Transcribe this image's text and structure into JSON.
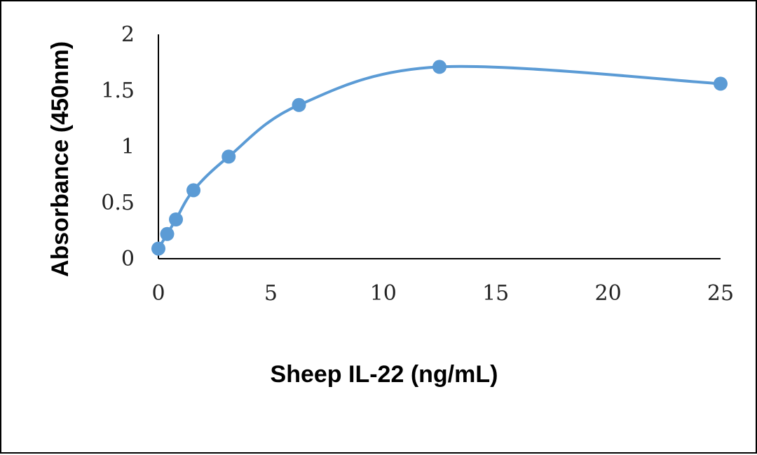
{
  "chart_data": {
    "type": "line",
    "title": "",
    "xlabel": "Sheep IL-22 (ng/mL)",
    "ylabel": "Absorbance (450nm)",
    "xlim": [
      0,
      25
    ],
    "ylim": [
      0,
      2
    ],
    "x_ticks": [
      "0",
      "5",
      "10",
      "15",
      "20",
      "25"
    ],
    "y_ticks": [
      "0",
      "0.5",
      "1",
      "1.5",
      "2"
    ],
    "x_tick_values": [
      0,
      5,
      10,
      15,
      20,
      25
    ],
    "y_tick_values": [
      0,
      0.5,
      1,
      1.5,
      2
    ],
    "grid": false,
    "legend": "none",
    "smooth": true,
    "series": [
      {
        "x": [
          0,
          0.39,
          0.78,
          1.56,
          3.125,
          6.25,
          12.5,
          25
        ],
        "y": [
          0.09,
          0.22,
          0.35,
          0.61,
          0.91,
          1.37,
          1.71,
          1.56
        ],
        "color": "#5b9bd5"
      }
    ]
  }
}
